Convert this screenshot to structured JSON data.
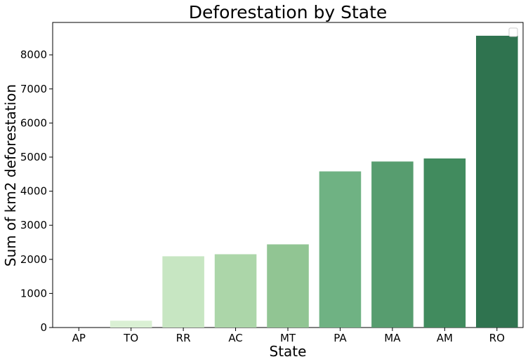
{
  "chart_data": {
    "type": "bar",
    "title": "Deforestation by State",
    "xlabel": "State",
    "ylabel": "Sum of km2 deforestation",
    "categories": [
      "AP",
      "TO",
      "RR",
      "AC",
      "MT",
      "PA",
      "MA",
      "AM",
      "RO"
    ],
    "values": [
      0,
      200,
      2090,
      2150,
      2440,
      4580,
      4870,
      4960,
      8560
    ],
    "colors": [
      "#edf8ea",
      "#daf0d4",
      "#c7e6c2",
      "#acd6a9",
      "#91c593",
      "#6fb283",
      "#579d6f",
      "#418b5e",
      "#2f734f"
    ],
    "ylim": [
      0,
      8950
    ],
    "yticks": [
      0,
      1000,
      2000,
      3000,
      4000,
      5000,
      6000,
      7000,
      8000
    ],
    "grid": false,
    "legend": "top-right (empty)"
  }
}
